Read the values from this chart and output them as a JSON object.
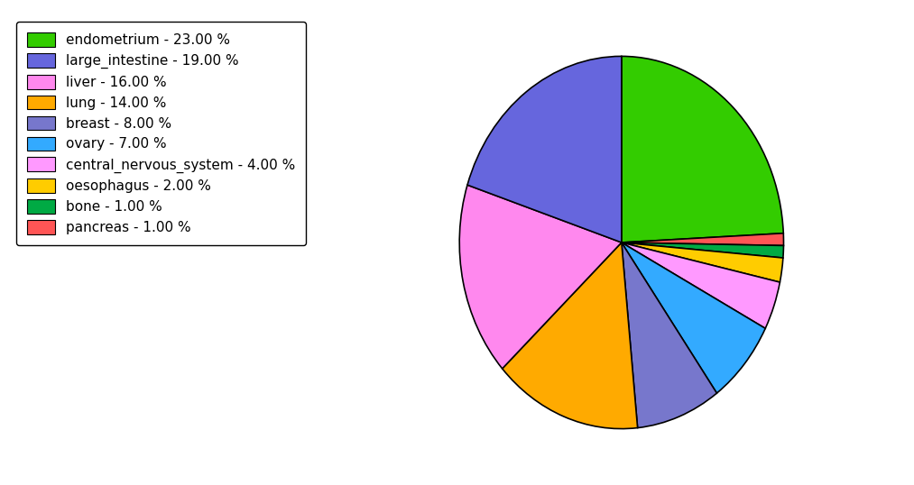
{
  "labels": [
    "endometrium",
    "pancreas",
    "bone",
    "oesophagus",
    "central_nervous_system",
    "ovary",
    "breast",
    "lung",
    "liver",
    "large_intestine"
  ],
  "values": [
    23,
    1,
    1,
    2,
    4,
    7,
    8,
    14,
    16,
    19
  ],
  "slice_colors": [
    "#33cc00",
    "#ff5555",
    "#00aa44",
    "#ffcc00",
    "#ff99ff",
    "#33aaff",
    "#7777cc",
    "#ffaa00",
    "#ff88ee",
    "#6666dd"
  ],
  "legend_labels": [
    "endometrium - 23.00 %",
    "large_intestine - 19.00 %",
    "liver - 16.00 %",
    "lung - 14.00 %",
    "breast - 8.00 %",
    "ovary - 7.00 %",
    "central_nervous_system - 4.00 %",
    "oesophagus - 2.00 %",
    "bone - 1.00 %",
    "pancreas - 1.00 %"
  ],
  "legend_colors": [
    "#33cc00",
    "#6666dd",
    "#ff88ee",
    "#ffaa00",
    "#7777cc",
    "#33aaff",
    "#ff99ff",
    "#ffcc00",
    "#00aa44",
    "#ff5555"
  ],
  "startangle": 90,
  "counterclock": false,
  "figsize": [
    10.13,
    5.38
  ],
  "dpi": 100
}
